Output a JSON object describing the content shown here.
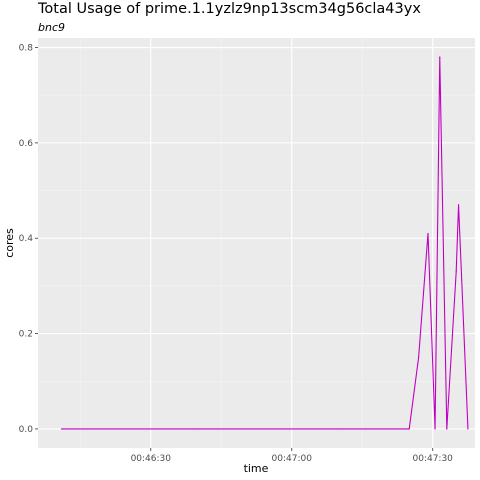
{
  "chart_data": {
    "type": "line",
    "title": "Total Usage of prime.1.1yzlz9np13scm34g56cla43yx",
    "subtitle": "bnc9",
    "xlabel": "time",
    "ylabel": "cores",
    "x_ticks": [
      "00:46:30",
      "00:47:00",
      "00:47:30"
    ],
    "y_ticks": [
      "0.0",
      "0.2",
      "0.4",
      "0.6",
      "0.8"
    ],
    "xlim": [
      "00:46:06",
      "00:47:39"
    ],
    "ylim": [
      -0.04,
      0.82
    ],
    "grid": true,
    "series": [
      {
        "color": "#c000c0",
        "points": [
          {
            "x": "00:46:11",
            "y": 0.0
          },
          {
            "x": "00:46:40",
            "y": 0.0
          },
          {
            "x": "00:47:10",
            "y": 0.0
          },
          {
            "x": "00:47:25",
            "y": 0.0
          },
          {
            "x": "00:47:27",
            "y": 0.15
          },
          {
            "x": "00:47:29",
            "y": 0.41
          },
          {
            "x": "00:47:30.5",
            "y": 0.0
          },
          {
            "x": "00:47:31.5",
            "y": 0.78
          },
          {
            "x": "00:47:33",
            "y": 0.0
          },
          {
            "x": "00:47:35",
            "y": 0.33
          },
          {
            "x": "00:47:35.5",
            "y": 0.47
          },
          {
            "x": "00:47:37.5",
            "y": 0.0
          }
        ]
      }
    ]
  }
}
